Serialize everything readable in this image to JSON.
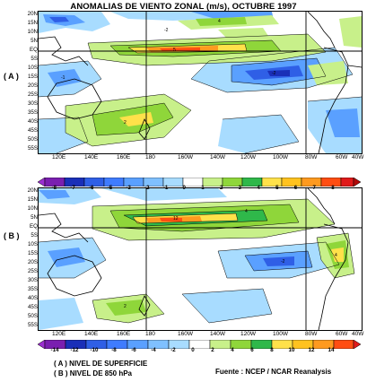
{
  "title": "ANOMALIAS DE VIENTO ZONAL (m/s), OCTUBRE 1997",
  "panels": [
    {
      "label": "( A )"
    },
    {
      "label": "( B )"
    }
  ],
  "lat_labels": [
    "20N",
    "15N",
    "10N",
    "5N",
    "EQ",
    "5S",
    "10S",
    "15S",
    "20S",
    "25S",
    "30S",
    "35S",
    "40S",
    "45S",
    "50S",
    "55S"
  ],
  "lon_labels": [
    "120E",
    "140E",
    "160E",
    "180",
    "160W",
    "140W",
    "120W",
    "100W",
    "80W",
    "60W",
    "40W"
  ],
  "colorbar_a": [
    "-8",
    "-7",
    "-6",
    "-5",
    "-3",
    "-2",
    "-1",
    "0",
    "1",
    "2",
    "3",
    "4",
    "5",
    "6",
    "7",
    "8"
  ],
  "colorbar_b": [
    "-14",
    "-12",
    "-10",
    "-8",
    "-6",
    "-4",
    "-2",
    "0",
    "2",
    "4",
    "6",
    "8",
    "10",
    "12",
    "14"
  ],
  "legend_a": "( A ) NIVEL DE SUPERFICIE",
  "legend_b": "( B ) NIVEL DE 850 hPa",
  "source": "Fuente : NCEP / NCAR Reanalysis",
  "colors": {
    "purple": "#7a1fb0",
    "darkblue": "#1a2fb8",
    "blue": "#2f5fe6",
    "lightblue": "#5aa0ff",
    "paleblue": "#a8dcff",
    "white": "#ffffff",
    "green1": "#c8f08a",
    "green2": "#8fd63a",
    "yellow": "#ffe14a",
    "orange": "#ff9a1f",
    "red": "#ff4d12",
    "darkred": "#e01a1a"
  }
}
